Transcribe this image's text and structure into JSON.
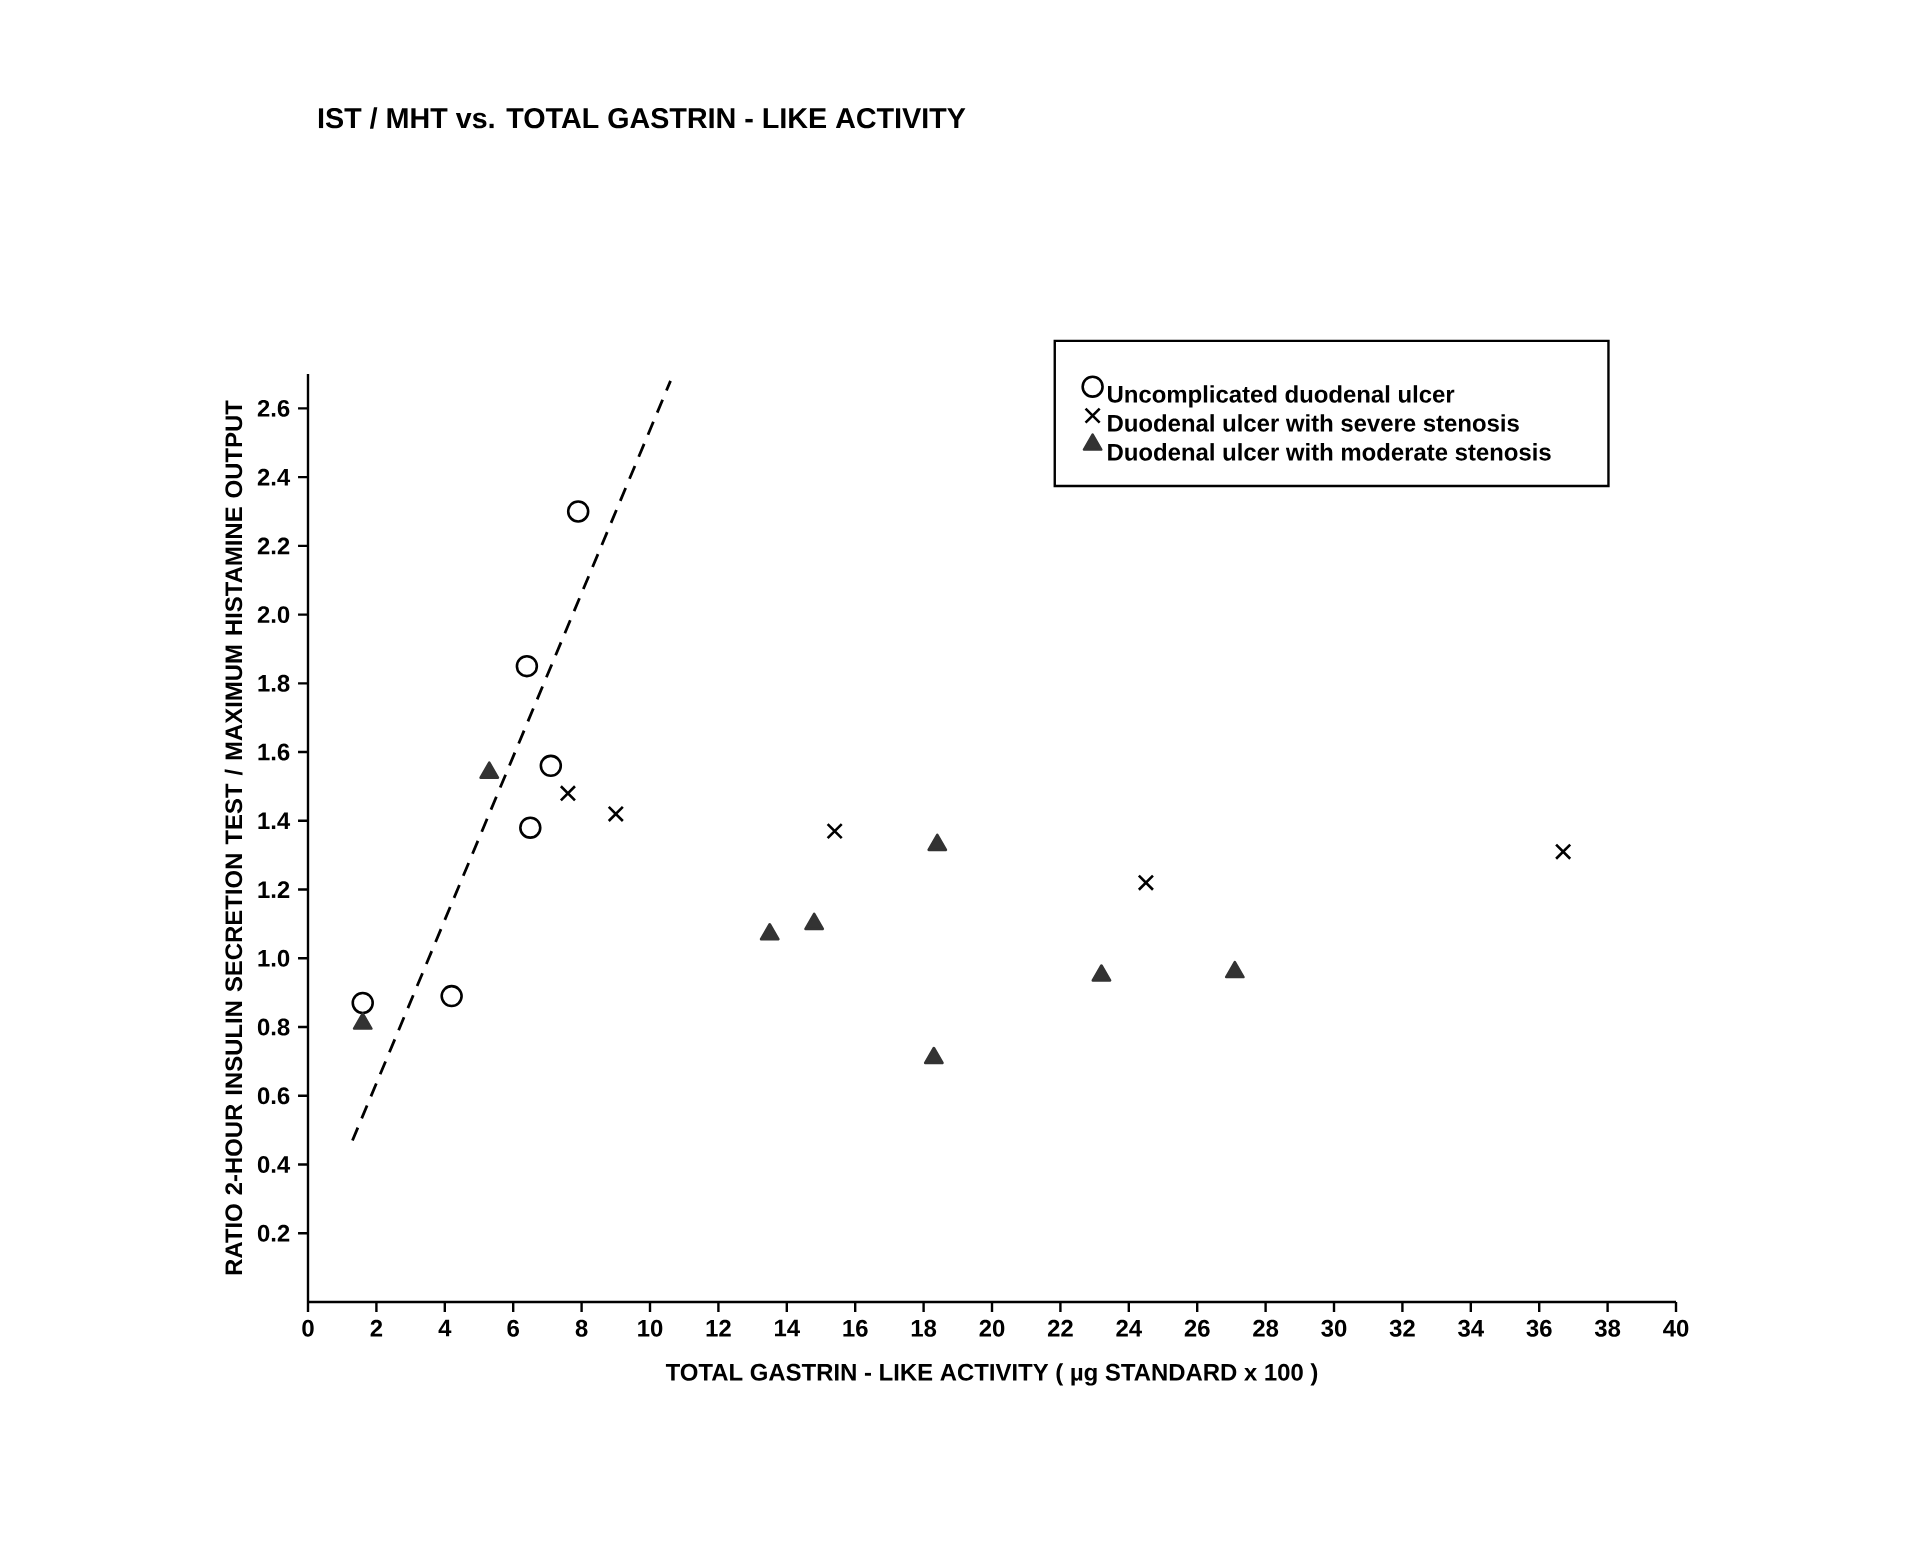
{
  "chart_data": {
    "type": "scatter",
    "title": "IST / MHT vs. TOTAL GASTRIN - LIKE ACTIVITY",
    "xlabel": "TOTAL  GASTRIN - LIKE ACTIVITY  ( µg STANDARD x 100 )",
    "ylabel": "RATIO 2-HOUR INSULIN SECRETION TEST / MAXIMUM HISTAMINE OUTPUT",
    "xlim": [
      0,
      40
    ],
    "ylim": [
      0,
      2.7
    ],
    "xticks": [
      0,
      2,
      4,
      6,
      8,
      10,
      12,
      14,
      16,
      18,
      20,
      22,
      24,
      26,
      28,
      30,
      32,
      34,
      36,
      38,
      40
    ],
    "yticks": [
      0.2,
      0.4,
      0.6,
      0.8,
      {
        "value": 1.0,
        "label": "1.0"
      },
      1.2,
      1.4,
      1.6,
      1.8,
      {
        "value": 2.0,
        "label": "2.0"
      },
      2.2,
      2.4,
      2.6
    ],
    "legend": "top right",
    "series": [
      {
        "name": "Uncomplicated duodenal ulcer",
        "color": "#000000",
        "marker": "circle",
        "x": [
          1.6,
          4.2,
          6.5,
          6.4,
          7.1,
          7.9
        ],
        "values": [
          0.87,
          0.89,
          1.38,
          1.85,
          1.56,
          2.3
        ]
      },
      {
        "name": "Duodenal ulcer with severe stenosis",
        "color": "#000000",
        "marker": "cross",
        "x": [
          7.6,
          9.0,
          15.4,
          24.5,
          36.7
        ],
        "values": [
          1.48,
          1.42,
          1.37,
          1.22,
          1.31
        ]
      },
      {
        "name": "Duodenal ulcer with moderate stenosis",
        "color": "#333333",
        "marker": "triangle",
        "x": [
          1.6,
          5.3,
          13.5,
          14.8,
          18.4,
          18.3,
          23.2,
          27.1
        ],
        "values": [
          0.81,
          1.54,
          1.07,
          1.1,
          1.33,
          0.71,
          0.95,
          0.96
        ]
      },
      {
        "type": "line",
        "color": "#000000",
        "line_style": "dashed",
        "marker": "none",
        "x": [
          1.3,
          10.6
        ],
        "values": [
          0.47,
          2.68
        ]
      }
    ]
  }
}
